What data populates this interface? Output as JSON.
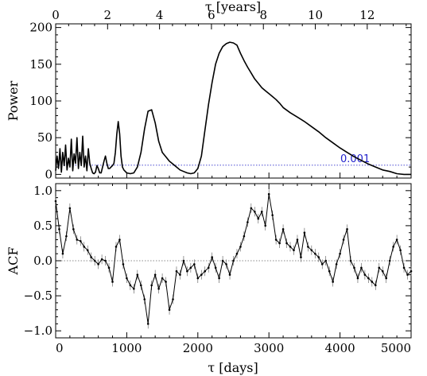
{
  "chart_data": [
    {
      "type": "line",
      "panel": "periodogram",
      "ylabel": "Power",
      "top_axis_label": "τ [years]",
      "top_axis_ticks": [
        "0",
        "2",
        "4",
        "6",
        "8",
        "10",
        "12"
      ],
      "top_axis_tick_values": [
        0,
        2,
        4,
        6,
        8,
        10,
        12
      ],
      "xlim": [
        0,
        5000
      ],
      "ylim": [
        -5,
        205
      ],
      "yticks": [
        0,
        50,
        100,
        150,
        200
      ],
      "ytick_labels": [
        "0",
        "50",
        "100",
        "150",
        "200"
      ],
      "grid": false,
      "threshold": {
        "value": 12.5,
        "label": "0.001",
        "style": "dotted",
        "color": "#3333cc"
      },
      "series": [
        {
          "x": [
            0,
            20,
            40,
            60,
            80,
            100,
            120,
            140,
            160,
            180,
            200,
            220,
            240,
            260,
            280,
            300,
            320,
            340,
            360,
            380,
            400,
            420,
            440,
            460,
            480,
            500,
            520,
            540,
            560,
            580,
            600,
            620,
            640,
            660,
            680,
            700,
            720,
            740,
            760,
            780,
            800,
            820,
            840,
            860,
            880,
            900,
            920,
            940,
            960,
            980,
            1000,
            1050,
            1100,
            1150,
            1200,
            1250,
            1300,
            1350,
            1400,
            1450,
            1500,
            1550,
            1600,
            1650,
            1700,
            1750,
            1800,
            1850,
            1900,
            1950,
            2000,
            2050,
            2100,
            2150,
            2200,
            2250,
            2300,
            2350,
            2400,
            2450,
            2500,
            2550,
            2600,
            2650,
            2700,
            2750,
            2800,
            2850,
            2900,
            2950,
            3000,
            3050,
            3100,
            3150,
            3200,
            3300,
            3400,
            3500,
            3600,
            3700,
            3800,
            3900,
            4000,
            4100,
            4200,
            4300,
            4400,
            4500,
            4600,
            4700,
            4800,
            4900,
            5000
          ],
          "y": [
            5,
            25,
            8,
            35,
            3,
            30,
            12,
            40,
            6,
            22,
            10,
            48,
            5,
            28,
            15,
            50,
            8,
            30,
            12,
            52,
            10,
            25,
            5,
            35,
            15,
            8,
            2,
            1,
            3,
            12,
            8,
            2,
            2,
            10,
            18,
            25,
            15,
            8,
            8,
            10,
            12,
            15,
            30,
            55,
            72,
            55,
            25,
            10,
            6,
            4,
            2,
            1,
            2,
            10,
            30,
            62,
            86,
            88,
            70,
            45,
            30,
            24,
            18,
            14,
            10,
            6,
            4,
            2,
            1,
            2,
            8,
            25,
            60,
            95,
            125,
            150,
            165,
            174,
            178,
            180,
            179,
            176,
            165,
            155,
            146,
            138,
            130,
            124,
            118,
            114,
            110,
            106,
            102,
            97,
            91,
            84,
            78,
            72,
            65,
            58,
            50,
            43,
            36,
            30,
            24,
            19,
            14,
            10,
            6,
            4,
            1,
            0,
            0
          ]
        }
      ]
    },
    {
      "type": "line",
      "panel": "acf",
      "ylabel": "ACF",
      "xlabel": "τ [days]",
      "xlim": [
        0,
        5000
      ],
      "ylim": [
        -1.1,
        1.1
      ],
      "xticks": [
        0,
        1000,
        2000,
        3000,
        4000,
        5000
      ],
      "xtick_labels": [
        "0",
        "1000",
        "2000",
        "3000",
        "4000",
        "5000"
      ],
      "yticks": [
        -1.0,
        -0.5,
        0.0,
        0.5,
        1.0
      ],
      "ytick_labels": [
        "−1.0",
        "−0.5",
        "0.0",
        "0.5",
        "1.0"
      ],
      "grid": false,
      "zero_line": {
        "value": 0.0,
        "style": "dotted"
      },
      "errorbars": true,
      "series": [
        {
          "x": [
            0,
            50,
            100,
            150,
            200,
            250,
            300,
            350,
            400,
            450,
            500,
            550,
            600,
            650,
            700,
            750,
            800,
            850,
            900,
            950,
            1000,
            1050,
            1100,
            1150,
            1200,
            1250,
            1300,
            1350,
            1400,
            1450,
            1500,
            1550,
            1600,
            1650,
            1700,
            1750,
            1800,
            1850,
            1900,
            1950,
            2000,
            2050,
            2100,
            2150,
            2200,
            2250,
            2300,
            2350,
            2400,
            2450,
            2500,
            2550,
            2600,
            2650,
            2700,
            2750,
            2800,
            2850,
            2900,
            2950,
            3000,
            3050,
            3100,
            3150,
            3200,
            3250,
            3300,
            3350,
            3400,
            3450,
            3500,
            3550,
            3600,
            3650,
            3700,
            3750,
            3800,
            3850,
            3900,
            3950,
            4000,
            4050,
            4100,
            4150,
            4200,
            4250,
            4300,
            4350,
            4400,
            4450,
            4500,
            4550,
            4600,
            4650,
            4700,
            4750,
            4800,
            4850,
            4900,
            4950,
            5000
          ],
          "y": [
            0.85,
            0.45,
            0.1,
            0.35,
            0.75,
            0.45,
            0.3,
            0.28,
            0.2,
            0.15,
            0.05,
            0.0,
            -0.05,
            0.02,
            0.0,
            -0.1,
            -0.3,
            0.2,
            0.3,
            -0.05,
            -0.25,
            -0.35,
            -0.4,
            -0.2,
            -0.35,
            -0.55,
            -0.9,
            -0.35,
            -0.2,
            -0.4,
            -0.25,
            -0.3,
            -0.7,
            -0.55,
            -0.15,
            -0.2,
            0.0,
            -0.15,
            -0.1,
            -0.05,
            -0.25,
            -0.2,
            -0.15,
            -0.1,
            0.05,
            -0.1,
            -0.25,
            0.0,
            -0.05,
            -0.2,
            0.0,
            0.1,
            0.2,
            0.35,
            0.55,
            0.75,
            0.7,
            0.6,
            0.7,
            0.5,
            0.95,
            0.65,
            0.3,
            0.25,
            0.45,
            0.25,
            0.2,
            0.15,
            0.3,
            0.05,
            0.4,
            0.2,
            0.15,
            0.1,
            0.05,
            -0.05,
            0.0,
            -0.15,
            -0.3,
            -0.05,
            0.1,
            0.3,
            0.45,
            0.0,
            -0.1,
            -0.25,
            -0.1,
            -0.2,
            -0.25,
            -0.3,
            -0.35,
            -0.1,
            -0.15,
            -0.25,
            0.0,
            0.2,
            0.3,
            0.15,
            -0.1,
            -0.2,
            -0.15
          ]
        }
      ]
    }
  ]
}
